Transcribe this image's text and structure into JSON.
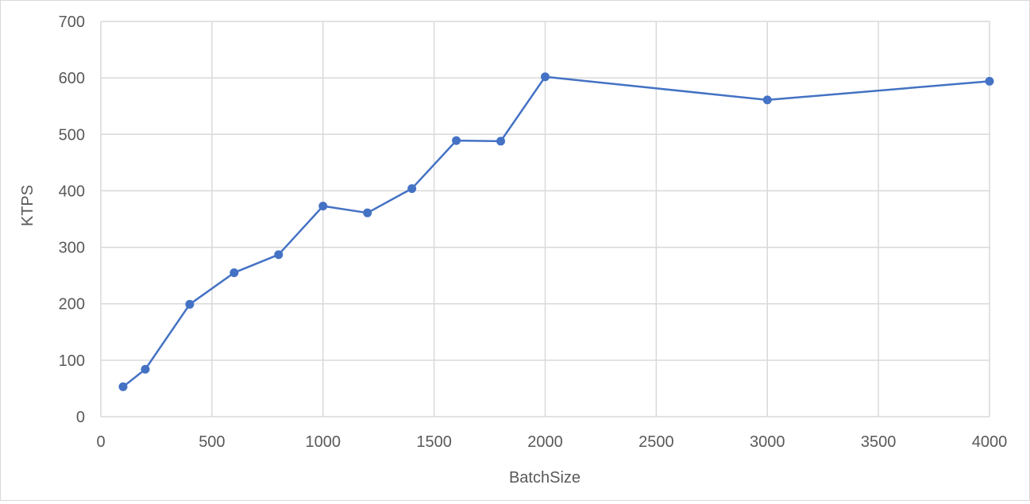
{
  "chart_data": {
    "type": "line",
    "title": "",
    "xlabel": "BatchSize",
    "ylabel": "KTPS",
    "xlim": [
      0,
      4000
    ],
    "ylim": [
      0,
      700
    ],
    "xticks": [
      0,
      500,
      1000,
      1500,
      2000,
      2500,
      3000,
      3500,
      4000
    ],
    "yticks": [
      0,
      100,
      200,
      300,
      400,
      500,
      600,
      700
    ],
    "grid": true,
    "legend": "none",
    "colors": {
      "series": "#4472C4",
      "grid": "#d9d9d9",
      "text": "#595959"
    },
    "series": [
      {
        "x": [
          100,
          200,
          400,
          600,
          800,
          1000,
          1200,
          1400,
          1600,
          1800,
          2000,
          3000,
          4000
        ],
        "y": [
          53,
          84,
          199,
          255,
          287,
          373,
          361,
          404,
          489,
          488,
          602,
          561,
          594
        ]
      }
    ]
  }
}
